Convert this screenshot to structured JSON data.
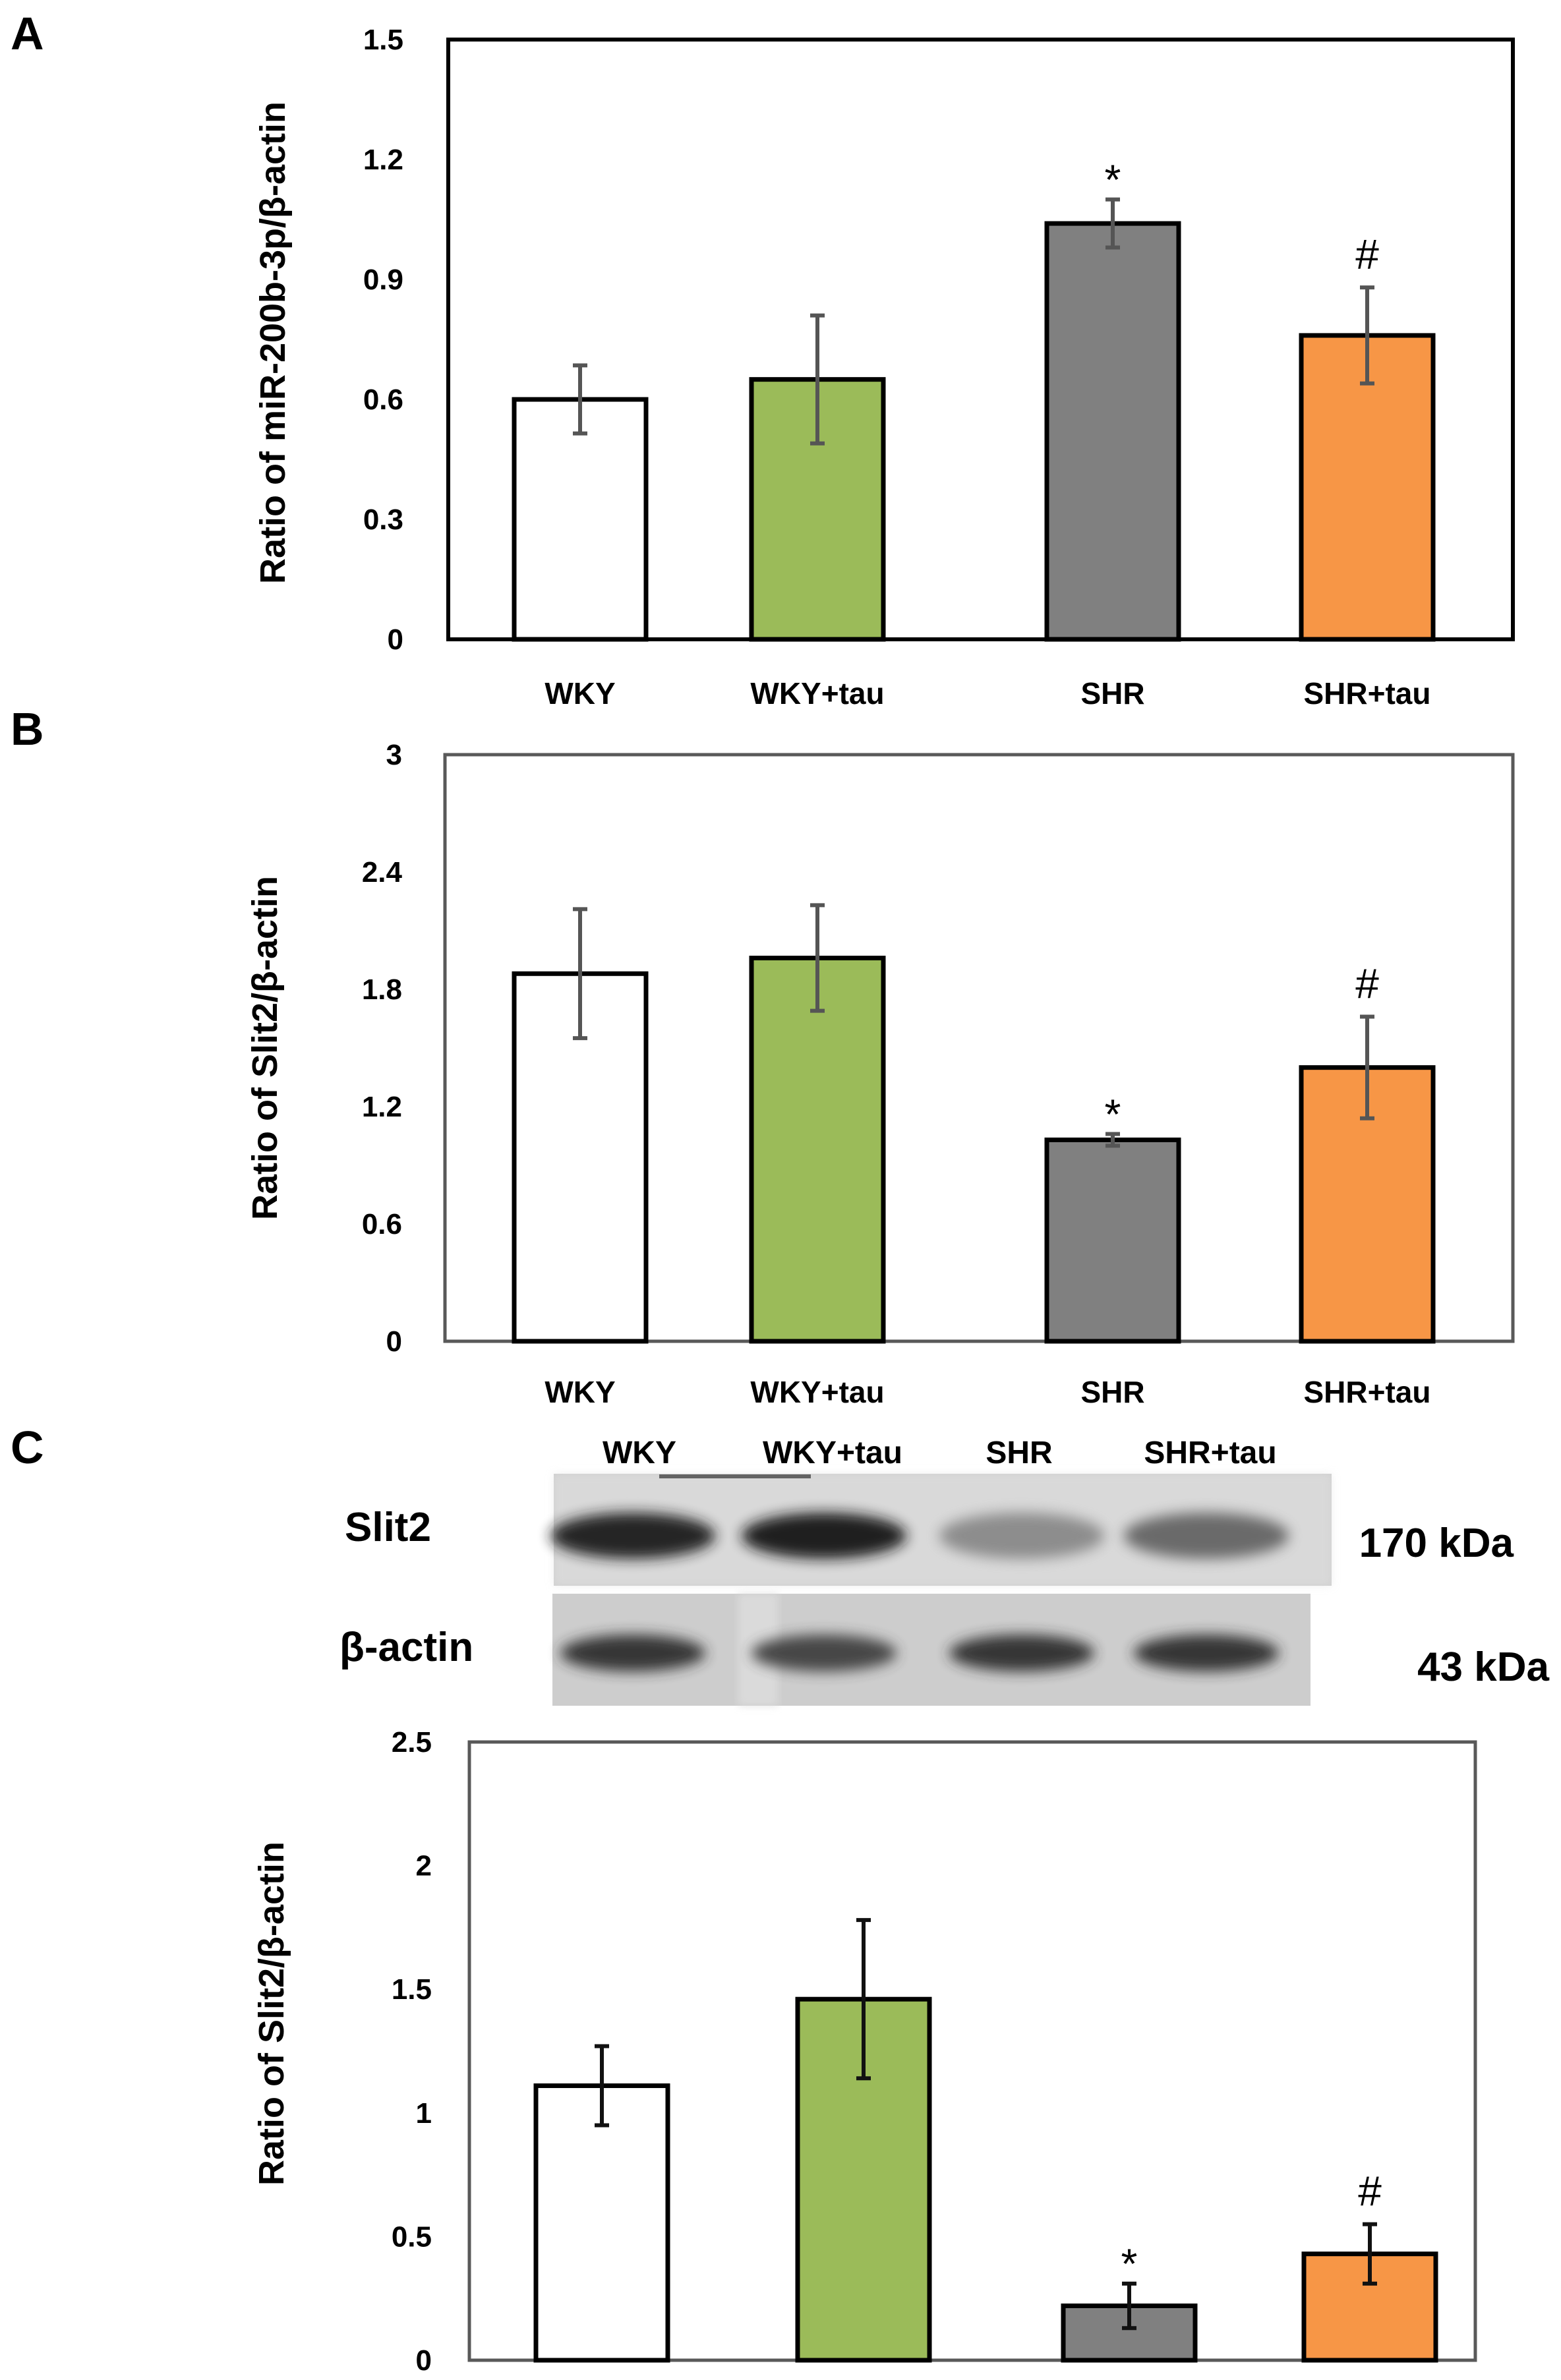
{
  "chart_data": [
    {
      "panel": "A",
      "type": "bar",
      "categories": [
        "WKY",
        "WKY+tau",
        "SHR",
        "SHR+tau"
      ],
      "values": [
        0.6,
        0.65,
        1.04,
        0.76
      ],
      "errors": [
        0.085,
        0.16,
        0.06,
        0.12
      ],
      "markers": [
        "",
        "",
        "*",
        "#"
      ],
      "colors": [
        "#ffffff",
        "#9bbb59",
        "#808080",
        "#f79646"
      ],
      "title": "",
      "xlabel": "",
      "ylabel": "Ratio of miR-200b-3p/β-actin",
      "ylim": [
        0,
        1.5
      ],
      "yticks": [
        0,
        0.3,
        0.6,
        0.9,
        1.2,
        1.5
      ],
      "ytick_labels": [
        "0",
        "0.3",
        "0.6",
        "0.9",
        "1.2",
        "1.5"
      ]
    },
    {
      "panel": "B",
      "type": "bar",
      "categories": [
        "WKY",
        "WKY+tau",
        "SHR",
        "SHR+tau"
      ],
      "values": [
        1.88,
        1.96,
        1.03,
        1.4
      ],
      "errors": [
        0.33,
        0.27,
        0.03,
        0.26
      ],
      "markers": [
        "",
        "",
        "*",
        "#"
      ],
      "colors": [
        "#ffffff",
        "#9bbb59",
        "#808080",
        "#f79646"
      ],
      "title": "",
      "xlabel": "",
      "ylabel": "Ratio of Slit2/β-actin",
      "ylim": [
        0,
        3
      ],
      "yticks": [
        0,
        0.6,
        1.2,
        1.8,
        2.4,
        3
      ],
      "ytick_labels": [
        "0",
        "0.6",
        "1.2",
        "1.8",
        "2.4",
        "3"
      ]
    },
    {
      "panel": "C",
      "type": "bar",
      "categories": [
        "WKY",
        "WKY+tau",
        "SHR",
        "SHR+tau"
      ],
      "values": [
        1.11,
        1.46,
        0.22,
        0.43
      ],
      "errors": [
        0.16,
        0.32,
        0.09,
        0.12
      ],
      "markers": [
        "",
        "",
        "*",
        "#"
      ],
      "colors": [
        "#ffffff",
        "#9bbb59",
        "#808080",
        "#f79646"
      ],
      "title": "",
      "xlabel": "",
      "ylabel": "Ratio of Slit2/β-actin",
      "ylim": [
        0,
        2.5
      ],
      "yticks": [
        0,
        0.5,
        1,
        1.5,
        2,
        2.5
      ],
      "ytick_labels": [
        "0",
        "0.5",
        "1",
        "1.5",
        "2",
        "2.5"
      ]
    }
  ],
  "panel_labels": [
    "A",
    "B",
    "C"
  ],
  "blot": {
    "lanes": [
      "WKY",
      "WKY+tau",
      "SHR",
      "SHR+tau"
    ],
    "rows": [
      {
        "protein": "Slit2",
        "size": "170 kDa",
        "band_intensity": [
          0.95,
          1.0,
          0.35,
          0.55
        ]
      },
      {
        "protein": "β-actin",
        "size": "43 kDa",
        "band_intensity": [
          0.85,
          0.75,
          0.85,
          0.85
        ]
      }
    ]
  },
  "colors": {
    "axis_gray": "#595959",
    "errorbar_gray": "#555555",
    "wky": "#ffffff",
    "wky_tau": "#9bbb59",
    "shr": "#808080",
    "shr_tau": "#f79646"
  }
}
